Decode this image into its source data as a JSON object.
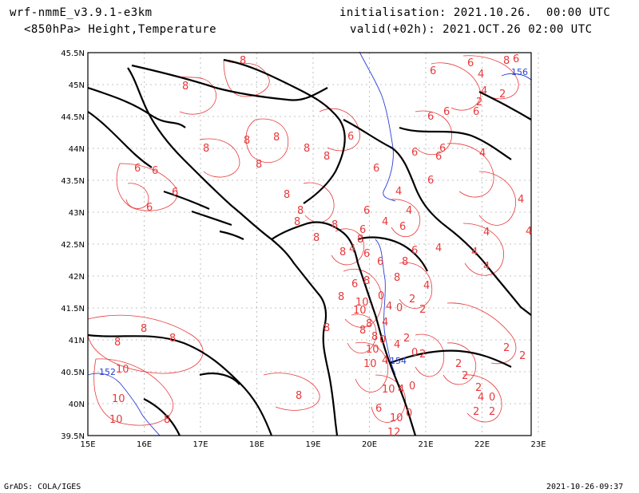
{
  "header": {
    "model": "wrf-nmmE_v3.9.1-e3km",
    "fields": "<850hPa> Height,Temperature",
    "init": "initialisation: 2021.10.26.  00:00 UTC",
    "valid": "valid(+02h): 2021.OCT.26 02:00 UTC"
  },
  "axes": {
    "lat_labels": [
      "45.5N",
      "45N",
      "44.5N",
      "44N",
      "43.5N",
      "43N",
      "42.5N",
      "42N",
      "41.5N",
      "41N",
      "40.5N",
      "40N",
      "39.5N"
    ],
    "lon_labels": [
      "15E",
      "16E",
      "17E",
      "18E",
      "19E",
      "20E",
      "21E",
      "22E",
      "23E"
    ]
  },
  "colors": {
    "temperature": "#e8383a",
    "height": "#2b3fd6",
    "coast": "#000000",
    "grid": "#b0b0b0"
  },
  "temperature_labels": [
    "8",
    "6",
    "4",
    "2",
    "0",
    "10",
    "12"
  ],
  "height_labels": [
    "156",
    "152",
    "154"
  ],
  "footer": {
    "left": "GrADS: COLA/IGES",
    "right": "2021-10-26-09:37"
  }
}
